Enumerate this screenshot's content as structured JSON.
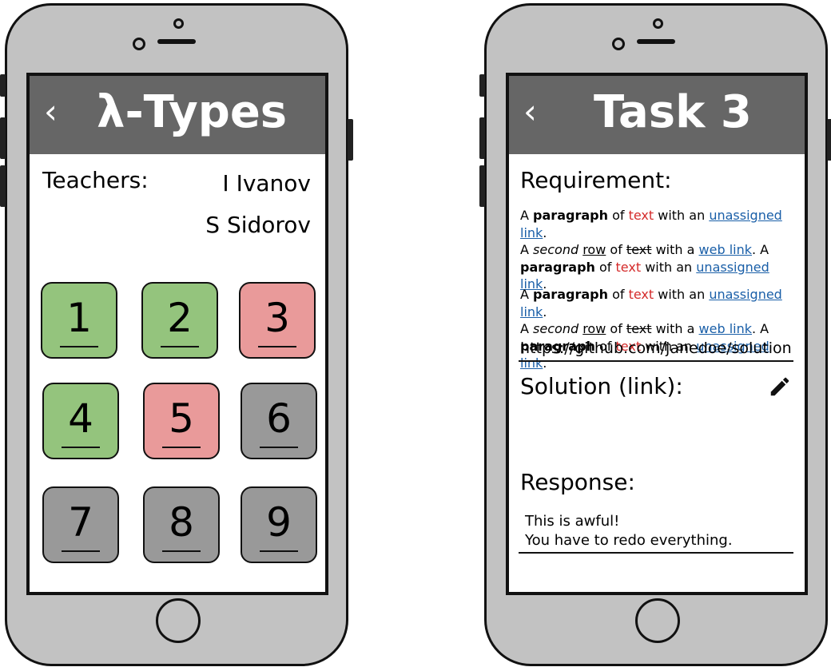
{
  "left_screen": {
    "title": "λ-Types",
    "back_glyph": "‹",
    "teachers_label": "Teachers:",
    "teachers": [
      "I Ivanov",
      "S Sidorov"
    ],
    "tasks": [
      {
        "label": "1",
        "status": "green"
      },
      {
        "label": "2",
        "status": "green"
      },
      {
        "label": "3",
        "status": "red"
      },
      {
        "label": "4",
        "status": "green"
      },
      {
        "label": "5",
        "status": "red"
      },
      {
        "label": "6",
        "status": "gray"
      },
      {
        "label": "7",
        "status": "gray"
      },
      {
        "label": "8",
        "status": "gray"
      },
      {
        "label": "9",
        "status": "gray"
      }
    ]
  },
  "right_screen": {
    "title": "Task 3",
    "back_glyph": "‹",
    "requirement_heading": "Requirement:",
    "requirement_text": {
      "a": "A",
      "paragraph": "paragraph",
      "of": "of",
      "text": "text",
      "with_an": "with an",
      "unassigned_link": "unassigned link",
      "period": ".",
      "second": "second",
      "row": "row",
      "with_a": "with a",
      "web_link": "web link",
      "period_a": ". A"
    },
    "solution_heading": "Solution (link):",
    "solution_value": "https://github.com/janedoe/solution",
    "response_heading": "Response:",
    "response_lines": [
      "This is awful!",
      "You have to redo everything."
    ]
  },
  "colors": {
    "header": "#666666",
    "phone_body": "#c2c2c2",
    "tile_green": "#94c47d",
    "tile_red": "#e99a9a",
    "tile_gray": "#999999",
    "red_text": "#d42a2a",
    "link": "#1a5fa8"
  },
  "icons": {
    "pencil": "pencil-icon",
    "back": "chevron-left-icon",
    "home": "home-button-icon"
  }
}
